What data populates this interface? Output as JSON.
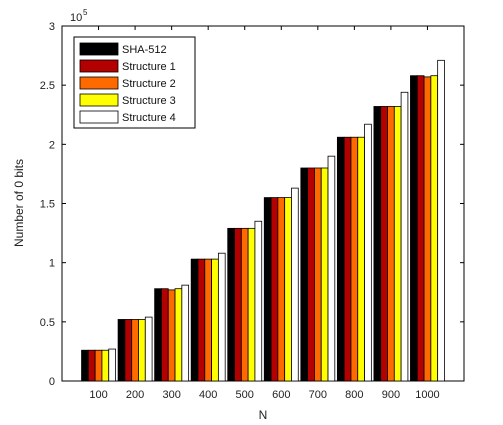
{
  "chart_data": {
    "type": "bar",
    "title": "",
    "xlabel": "N",
    "ylabel": "Number of 0 bits",
    "y_multiplier_label": "10",
    "y_multiplier_exponent": "5",
    "ylim": [
      0,
      3
    ],
    "y_ticks": [
      "0",
      "0.5",
      "1",
      "1.5",
      "2",
      "2.5",
      "3"
    ],
    "categories": [
      "100",
      "200",
      "300",
      "400",
      "500",
      "600",
      "700",
      "800",
      "900",
      "1000"
    ],
    "grid": false,
    "legend_position": "top-left",
    "series": [
      {
        "name": "SHA-512",
        "color": "#000000",
        "values": [
          0.26,
          0.52,
          0.78,
          1.03,
          1.29,
          1.55,
          1.8,
          2.06,
          2.32,
          2.58
        ]
      },
      {
        "name": "Structure 1",
        "color": "#b30000",
        "values": [
          0.26,
          0.52,
          0.78,
          1.03,
          1.29,
          1.55,
          1.8,
          2.06,
          2.32,
          2.58
        ]
      },
      {
        "name": "Structure 2",
        "color": "#ff6a00",
        "values": [
          0.26,
          0.52,
          0.77,
          1.03,
          1.29,
          1.55,
          1.8,
          2.06,
          2.32,
          2.57
        ]
      },
      {
        "name": "Structure 3",
        "color": "#ffff00",
        "values": [
          0.26,
          0.52,
          0.78,
          1.03,
          1.29,
          1.55,
          1.8,
          2.06,
          2.32,
          2.58
        ]
      },
      {
        "name": "Structure 4",
        "color": "#ffffff",
        "values": [
          0.27,
          0.54,
          0.81,
          1.08,
          1.35,
          1.63,
          1.9,
          2.17,
          2.44,
          2.71
        ]
      }
    ]
  }
}
